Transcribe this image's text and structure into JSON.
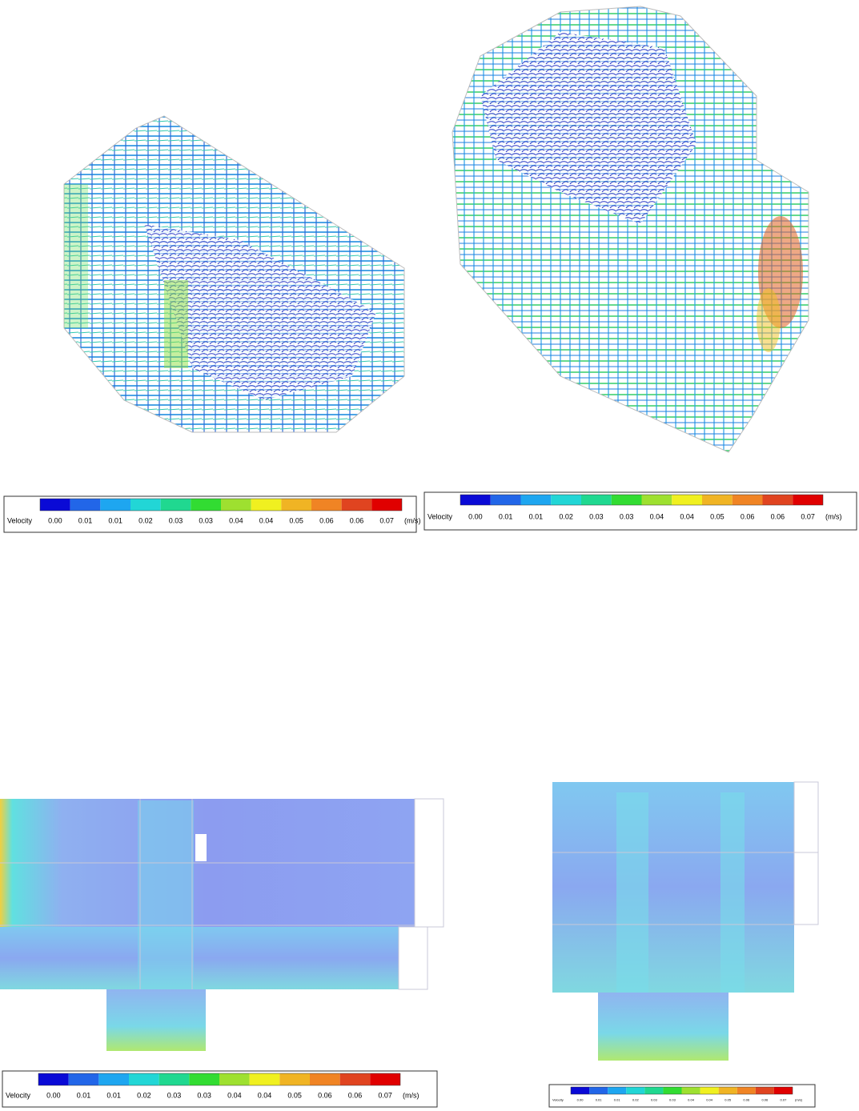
{
  "colorbar": {
    "label": "Velocity",
    "unit": "(m/s)",
    "ticks": [
      "0.00",
      "0.01",
      "0.01",
      "0.02",
      "0.03",
      "0.03",
      "0.04",
      "0.04",
      "0.05",
      "0.06",
      "0.06",
      "0.07"
    ],
    "colors": [
      "#0a0ad6",
      "#2266e8",
      "#1ea6f0",
      "#22d6d6",
      "#20d890",
      "#32dc32",
      "#9ee030",
      "#f0f020",
      "#f0b424",
      "#f08424",
      "#e04420",
      "#e00000"
    ]
  }
}
